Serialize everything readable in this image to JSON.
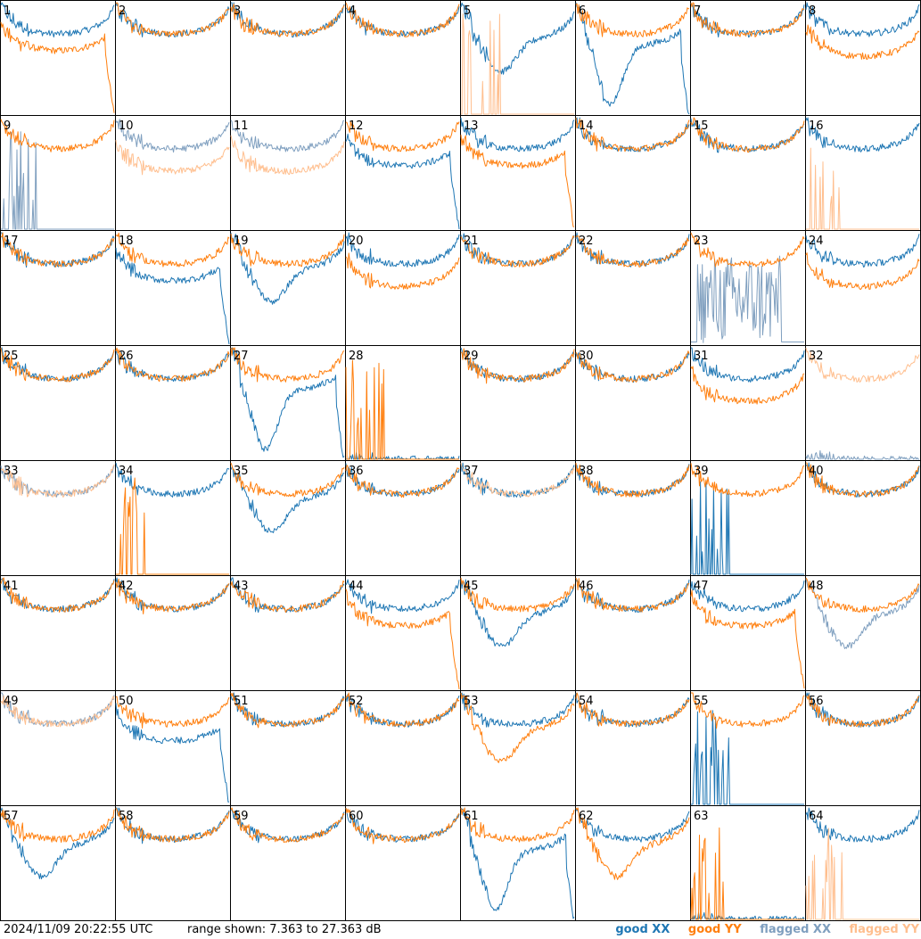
{
  "footer": {
    "timestamp": "2024/11/09 20:22:55 UTC",
    "range": "range shown: 7.363 to 27.363 dB"
  },
  "legend": [
    {
      "label": "good XX",
      "color": "#1f77b4"
    },
    {
      "label": "good YY",
      "color": "#ff7f0e"
    },
    {
      "label": "flagged XX",
      "color": "#7f9fbf"
    },
    {
      "label": "flagged YY",
      "color": "#ffbf8f"
    }
  ],
  "chart_data": {
    "type": "line",
    "grid": "8x8 small multiples",
    "ylim": [
      7.363,
      27.363
    ],
    "panels": [
      {
        "label": "1",
        "series": [
          {
            "pol": "XX",
            "status": "good",
            "shape": "bandpass"
          },
          {
            "pol": "YY",
            "status": "good",
            "shape": "rolloff"
          }
        ]
      },
      {
        "label": "2",
        "series": [
          {
            "pol": "XX",
            "status": "good",
            "shape": "bandpass"
          },
          {
            "pol": "YY",
            "status": "good",
            "shape": "bandpass"
          }
        ]
      },
      {
        "label": "3",
        "series": [
          {
            "pol": "XX",
            "status": "good",
            "shape": "bandpass"
          },
          {
            "pol": "YY",
            "status": "good",
            "shape": "bandpass"
          }
        ]
      },
      {
        "label": "4",
        "series": [
          {
            "pol": "XX",
            "status": "good",
            "shape": "bandpass"
          },
          {
            "pol": "YY",
            "status": "good",
            "shape": "bandpass"
          }
        ]
      },
      {
        "label": "5",
        "series": [
          {
            "pol": "XX",
            "status": "good",
            "shape": "dip"
          },
          {
            "pol": "YY",
            "status": "flagged",
            "shape": "spikes"
          }
        ]
      },
      {
        "label": "6",
        "series": [
          {
            "pol": "XX",
            "status": "good",
            "shape": "deepdip"
          },
          {
            "pol": "YY",
            "status": "good",
            "shape": "bandpass"
          }
        ]
      },
      {
        "label": "7",
        "series": [
          {
            "pol": "XX",
            "status": "good",
            "shape": "bandpass"
          },
          {
            "pol": "YY",
            "status": "good",
            "shape": "bandpass"
          }
        ]
      },
      {
        "label": "8",
        "series": [
          {
            "pol": "XX",
            "status": "good",
            "shape": "bandpass"
          },
          {
            "pol": "YY",
            "status": "good",
            "shape": "low"
          }
        ]
      },
      {
        "label": "9",
        "series": [
          {
            "pol": "XX",
            "status": "flagged",
            "shape": "spikes"
          },
          {
            "pol": "YY",
            "status": "good",
            "shape": "bandpass"
          }
        ]
      },
      {
        "label": "10",
        "series": [
          {
            "pol": "XX",
            "status": "flagged",
            "shape": "bandpass"
          },
          {
            "pol": "YY",
            "status": "flagged",
            "shape": "low"
          }
        ]
      },
      {
        "label": "11",
        "series": [
          {
            "pol": "XX",
            "status": "flagged",
            "shape": "bandpass"
          },
          {
            "pol": "YY",
            "status": "flagged",
            "shape": "low"
          }
        ]
      },
      {
        "label": "12",
        "series": [
          {
            "pol": "XX",
            "status": "good",
            "shape": "rolloff"
          },
          {
            "pol": "YY",
            "status": "good",
            "shape": "bandpass"
          }
        ]
      },
      {
        "label": "13",
        "series": [
          {
            "pol": "XX",
            "status": "good",
            "shape": "bandpass"
          },
          {
            "pol": "YY",
            "status": "good",
            "shape": "rolloff"
          }
        ]
      },
      {
        "label": "14",
        "series": [
          {
            "pol": "XX",
            "status": "good",
            "shape": "bandpass"
          },
          {
            "pol": "YY",
            "status": "good",
            "shape": "bandpass"
          }
        ]
      },
      {
        "label": "15",
        "series": [
          {
            "pol": "XX",
            "status": "good",
            "shape": "bandpass"
          },
          {
            "pol": "YY",
            "status": "good",
            "shape": "bandpass"
          }
        ]
      },
      {
        "label": "16",
        "series": [
          {
            "pol": "XX",
            "status": "good",
            "shape": "bandpass"
          },
          {
            "pol": "YY",
            "status": "flagged",
            "shape": "spikes"
          }
        ]
      },
      {
        "label": "17",
        "series": [
          {
            "pol": "XX",
            "status": "good",
            "shape": "bandpass"
          },
          {
            "pol": "YY",
            "status": "good",
            "shape": "bandpass"
          }
        ]
      },
      {
        "label": "18",
        "series": [
          {
            "pol": "XX",
            "status": "good",
            "shape": "rolloff"
          },
          {
            "pol": "YY",
            "status": "good",
            "shape": "bandpass"
          }
        ]
      },
      {
        "label": "19",
        "series": [
          {
            "pol": "XX",
            "status": "good",
            "shape": "dip"
          },
          {
            "pol": "YY",
            "status": "good",
            "shape": "bandpass"
          }
        ]
      },
      {
        "label": "20",
        "series": [
          {
            "pol": "XX",
            "status": "good",
            "shape": "bandpass"
          },
          {
            "pol": "YY",
            "status": "good",
            "shape": "low"
          }
        ]
      },
      {
        "label": "21",
        "series": [
          {
            "pol": "XX",
            "status": "good",
            "shape": "bandpass"
          },
          {
            "pol": "YY",
            "status": "good",
            "shape": "bandpass"
          }
        ]
      },
      {
        "label": "22",
        "series": [
          {
            "pol": "XX",
            "status": "good",
            "shape": "bandpass"
          },
          {
            "pol": "YY",
            "status": "good",
            "shape": "bandpass"
          }
        ]
      },
      {
        "label": "23",
        "series": [
          {
            "pol": "XX",
            "status": "flagged",
            "shape": "noisy"
          },
          {
            "pol": "YY",
            "status": "good",
            "shape": "bandpass"
          }
        ]
      },
      {
        "label": "24",
        "series": [
          {
            "pol": "XX",
            "status": "good",
            "shape": "bandpass"
          },
          {
            "pol": "YY",
            "status": "good",
            "shape": "low"
          }
        ]
      },
      {
        "label": "25",
        "series": [
          {
            "pol": "XX",
            "status": "good",
            "shape": "bandpass"
          },
          {
            "pol": "YY",
            "status": "good",
            "shape": "bandpass"
          }
        ]
      },
      {
        "label": "26",
        "series": [
          {
            "pol": "XX",
            "status": "good",
            "shape": "bandpass"
          },
          {
            "pol": "YY",
            "status": "good",
            "shape": "bandpass"
          }
        ]
      },
      {
        "label": "27",
        "series": [
          {
            "pol": "XX",
            "status": "good",
            "shape": "deepdip"
          },
          {
            "pol": "YY",
            "status": "good",
            "shape": "bandpass"
          }
        ]
      },
      {
        "label": "28",
        "series": [
          {
            "pol": "XX",
            "status": "good",
            "shape": "flat"
          },
          {
            "pol": "YY",
            "status": "good",
            "shape": "spikes"
          }
        ]
      },
      {
        "label": "29",
        "series": [
          {
            "pol": "XX",
            "status": "good",
            "shape": "bandpass"
          },
          {
            "pol": "YY",
            "status": "good",
            "shape": "bandpass"
          }
        ]
      },
      {
        "label": "30",
        "series": [
          {
            "pol": "XX",
            "status": "good",
            "shape": "bandpass"
          },
          {
            "pol": "YY",
            "status": "good",
            "shape": "bandpass"
          }
        ]
      },
      {
        "label": "31",
        "series": [
          {
            "pol": "XX",
            "status": "good",
            "shape": "bandpass"
          },
          {
            "pol": "YY",
            "status": "good",
            "shape": "low"
          }
        ]
      },
      {
        "label": "32",
        "series": [
          {
            "pol": "XX",
            "status": "flagged",
            "shape": "flat"
          },
          {
            "pol": "YY",
            "status": "flagged",
            "shape": "bandpass"
          }
        ]
      },
      {
        "label": "33",
        "series": [
          {
            "pol": "XX",
            "status": "flagged",
            "shape": "bandpass"
          },
          {
            "pol": "YY",
            "status": "flagged",
            "shape": "bandpass"
          }
        ]
      },
      {
        "label": "34",
        "series": [
          {
            "pol": "XX",
            "status": "good",
            "shape": "bandpass"
          },
          {
            "pol": "YY",
            "status": "good",
            "shape": "spikes"
          }
        ]
      },
      {
        "label": "35",
        "series": [
          {
            "pol": "XX",
            "status": "good",
            "shape": "dip"
          },
          {
            "pol": "YY",
            "status": "good",
            "shape": "bandpass"
          }
        ]
      },
      {
        "label": "36",
        "series": [
          {
            "pol": "XX",
            "status": "good",
            "shape": "bandpass"
          },
          {
            "pol": "YY",
            "status": "good",
            "shape": "bandpass"
          }
        ]
      },
      {
        "label": "37",
        "series": [
          {
            "pol": "XX",
            "status": "good",
            "shape": "bandpass"
          },
          {
            "pol": "YY",
            "status": "flagged",
            "shape": "bandpass"
          }
        ]
      },
      {
        "label": "38",
        "series": [
          {
            "pol": "XX",
            "status": "good",
            "shape": "bandpass"
          },
          {
            "pol": "YY",
            "status": "good",
            "shape": "bandpass"
          }
        ]
      },
      {
        "label": "39",
        "series": [
          {
            "pol": "XX",
            "status": "good",
            "shape": "spikes"
          },
          {
            "pol": "YY",
            "status": "good",
            "shape": "bandpass"
          }
        ]
      },
      {
        "label": "40",
        "series": [
          {
            "pol": "XX",
            "status": "good",
            "shape": "bandpass"
          },
          {
            "pol": "YY",
            "status": "good",
            "shape": "bandpass"
          }
        ]
      },
      {
        "label": "41",
        "series": [
          {
            "pol": "XX",
            "status": "good",
            "shape": "bandpass"
          },
          {
            "pol": "YY",
            "status": "good",
            "shape": "bandpass"
          }
        ]
      },
      {
        "label": "42",
        "series": [
          {
            "pol": "XX",
            "status": "good",
            "shape": "bandpass"
          },
          {
            "pol": "YY",
            "status": "good",
            "shape": "bandpass"
          }
        ]
      },
      {
        "label": "43",
        "series": [
          {
            "pol": "XX",
            "status": "good",
            "shape": "bandpass"
          },
          {
            "pol": "YY",
            "status": "good",
            "shape": "bandpass"
          }
        ]
      },
      {
        "label": "44",
        "series": [
          {
            "pol": "XX",
            "status": "good",
            "shape": "bandpass"
          },
          {
            "pol": "YY",
            "status": "good",
            "shape": "rolloff"
          }
        ]
      },
      {
        "label": "45",
        "series": [
          {
            "pol": "XX",
            "status": "good",
            "shape": "dip"
          },
          {
            "pol": "YY",
            "status": "good",
            "shape": "bandpass"
          }
        ]
      },
      {
        "label": "46",
        "series": [
          {
            "pol": "XX",
            "status": "good",
            "shape": "bandpass"
          },
          {
            "pol": "YY",
            "status": "good",
            "shape": "bandpass"
          }
        ]
      },
      {
        "label": "47",
        "series": [
          {
            "pol": "XX",
            "status": "good",
            "shape": "bandpass"
          },
          {
            "pol": "YY",
            "status": "good",
            "shape": "rolloff"
          }
        ]
      },
      {
        "label": "48",
        "series": [
          {
            "pol": "XX",
            "status": "flagged",
            "shape": "dip"
          },
          {
            "pol": "YY",
            "status": "good",
            "shape": "bandpass"
          }
        ]
      },
      {
        "label": "49",
        "series": [
          {
            "pol": "XX",
            "status": "flagged",
            "shape": "bandpass"
          },
          {
            "pol": "YY",
            "status": "flagged",
            "shape": "bandpass"
          }
        ]
      },
      {
        "label": "50",
        "series": [
          {
            "pol": "XX",
            "status": "good",
            "shape": "rolloff"
          },
          {
            "pol": "YY",
            "status": "good",
            "shape": "bandpass"
          }
        ]
      },
      {
        "label": "51",
        "series": [
          {
            "pol": "XX",
            "status": "good",
            "shape": "bandpass"
          },
          {
            "pol": "YY",
            "status": "good",
            "shape": "bandpass"
          }
        ]
      },
      {
        "label": "52",
        "series": [
          {
            "pol": "XX",
            "status": "good",
            "shape": "bandpass"
          },
          {
            "pol": "YY",
            "status": "good",
            "shape": "bandpass"
          }
        ]
      },
      {
        "label": "53",
        "series": [
          {
            "pol": "XX",
            "status": "good",
            "shape": "bandpass"
          },
          {
            "pol": "YY",
            "status": "good",
            "shape": "dip"
          }
        ]
      },
      {
        "label": "54",
        "series": [
          {
            "pol": "XX",
            "status": "good",
            "shape": "bandpass"
          },
          {
            "pol": "YY",
            "status": "good",
            "shape": "bandpass"
          }
        ]
      },
      {
        "label": "55",
        "series": [
          {
            "pol": "XX",
            "status": "good",
            "shape": "spikes"
          },
          {
            "pol": "YY",
            "status": "good",
            "shape": "bandpass"
          }
        ]
      },
      {
        "label": "56",
        "series": [
          {
            "pol": "XX",
            "status": "good",
            "shape": "bandpass"
          },
          {
            "pol": "YY",
            "status": "good",
            "shape": "bandpass"
          }
        ]
      },
      {
        "label": "57",
        "series": [
          {
            "pol": "XX",
            "status": "good",
            "shape": "dip"
          },
          {
            "pol": "YY",
            "status": "good",
            "shape": "bandpass"
          }
        ]
      },
      {
        "label": "58",
        "series": [
          {
            "pol": "XX",
            "status": "good",
            "shape": "bandpass"
          },
          {
            "pol": "YY",
            "status": "good",
            "shape": "bandpass"
          }
        ]
      },
      {
        "label": "59",
        "series": [
          {
            "pol": "XX",
            "status": "good",
            "shape": "bandpass"
          },
          {
            "pol": "YY",
            "status": "good",
            "shape": "bandpass"
          }
        ]
      },
      {
        "label": "60",
        "series": [
          {
            "pol": "XX",
            "status": "good",
            "shape": "bandpass"
          },
          {
            "pol": "YY",
            "status": "good",
            "shape": "bandpass"
          }
        ]
      },
      {
        "label": "61",
        "series": [
          {
            "pol": "XX",
            "status": "good",
            "shape": "deepdip"
          },
          {
            "pol": "YY",
            "status": "good",
            "shape": "bandpass"
          }
        ]
      },
      {
        "label": "62",
        "series": [
          {
            "pol": "XX",
            "status": "good",
            "shape": "bandpass"
          },
          {
            "pol": "YY",
            "status": "good",
            "shape": "dip"
          }
        ]
      },
      {
        "label": "63",
        "series": [
          {
            "pol": "XX",
            "status": "good",
            "shape": "flat"
          },
          {
            "pol": "YY",
            "status": "good",
            "shape": "spikes"
          }
        ]
      },
      {
        "label": "64",
        "series": [
          {
            "pol": "XX",
            "status": "good",
            "shape": "bandpass"
          },
          {
            "pol": "YY",
            "status": "flagged",
            "shape": "spikes"
          }
        ]
      }
    ]
  }
}
